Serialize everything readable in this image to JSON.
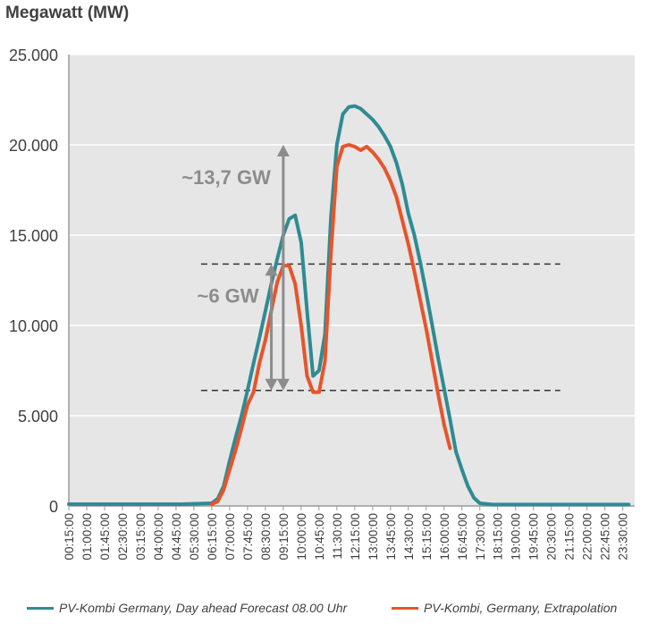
{
  "title": "Megawatt (MW)",
  "colors": {
    "forecast": "#2E8B93",
    "extrapolation": "#E8542A",
    "arrow": "#8C8C8C",
    "plot_bg": "#E6E6E6"
  },
  "chart_data": {
    "type": "line",
    "title": "Megawatt (MW)",
    "ylim": [
      0,
      25000
    ],
    "yticks": [
      0,
      5000,
      10000,
      15000,
      20000,
      25000
    ],
    "ytick_labels": [
      "0",
      "5.000",
      "10.000",
      "15.000",
      "20.000",
      "25.000"
    ],
    "xtick_labels": [
      "00:15:00",
      "01:00:00",
      "01:45:00",
      "02:30:00",
      "03:15:00",
      "04:00:00",
      "04:45:00",
      "05:30:00",
      "06:15:00",
      "07:00:00",
      "07:45:00",
      "08:30:00",
      "09:15:00",
      "10:00:00",
      "10:45:00",
      "11:30:00",
      "12:15:00",
      "13:00:00",
      "13:45:00",
      "14:30:00",
      "15:15:00",
      "16:00:00",
      "16:45:00",
      "17:30:00",
      "18:15:00",
      "19:00:00",
      "19:45:00",
      "20:30:00",
      "21:15:00",
      "22:00:00",
      "22:45:00",
      "23:30:00"
    ],
    "grid": "horizontal",
    "legend_position": "bottom",
    "series": [
      {
        "name": "PV-Kombi Germany, Day ahead Forecast 08.00 Uhr",
        "points": [
          [
            "00:15",
            100
          ],
          [
            "05:00",
            100
          ],
          [
            "06:15",
            150
          ],
          [
            "06:30",
            400
          ],
          [
            "06:45",
            1100
          ],
          [
            "07:00",
            2500
          ],
          [
            "07:15",
            3800
          ],
          [
            "07:30",
            5000
          ],
          [
            "07:45",
            6400
          ],
          [
            "08:00",
            7900
          ],
          [
            "08:15",
            9300
          ],
          [
            "08:30",
            10800
          ],
          [
            "08:45",
            12300
          ],
          [
            "09:00",
            13700
          ],
          [
            "09:15",
            15000
          ],
          [
            "09:30",
            15900
          ],
          [
            "09:45",
            16100
          ],
          [
            "10:00",
            14600
          ],
          [
            "10:15",
            10800
          ],
          [
            "10:30",
            7200
          ],
          [
            "10:45",
            7500
          ],
          [
            "11:00",
            9500
          ],
          [
            "11:15",
            16000
          ],
          [
            "11:30",
            20000
          ],
          [
            "11:45",
            21700
          ],
          [
            "12:00",
            22100
          ],
          [
            "12:15",
            22150
          ],
          [
            "12:30",
            22000
          ],
          [
            "12:45",
            21700
          ],
          [
            "13:00",
            21400
          ],
          [
            "13:15",
            21000
          ],
          [
            "13:30",
            20500
          ],
          [
            "13:45",
            19900
          ],
          [
            "14:00",
            19000
          ],
          [
            "14:15",
            17800
          ],
          [
            "14:30",
            16200
          ],
          [
            "14:45",
            15000
          ],
          [
            "15:00",
            13500
          ],
          [
            "15:15",
            11800
          ],
          [
            "15:30",
            10000
          ],
          [
            "15:45",
            8200
          ],
          [
            "16:00",
            6500
          ],
          [
            "16:15",
            4800
          ],
          [
            "16:30",
            3000
          ],
          [
            "16:45",
            2000
          ],
          [
            "17:00",
            1100
          ],
          [
            "17:15",
            450
          ],
          [
            "17:30",
            150
          ],
          [
            "18:00",
            80
          ],
          [
            "23:45",
            80
          ]
        ]
      },
      {
        "name": "PV-Kombi, Germany, Extrapolation",
        "points": [
          [
            "06:15",
            100
          ],
          [
            "06:30",
            250
          ],
          [
            "06:45",
            900
          ],
          [
            "07:00",
            2000
          ],
          [
            "07:15",
            3100
          ],
          [
            "07:30",
            4300
          ],
          [
            "07:45",
            5600
          ],
          [
            "08:00",
            6300
          ],
          [
            "08:15",
            7900
          ],
          [
            "08:30",
            9200
          ],
          [
            "08:45",
            10800
          ],
          [
            "09:00",
            12400
          ],
          [
            "09:15",
            13300
          ],
          [
            "09:30",
            13300
          ],
          [
            "09:45",
            12300
          ],
          [
            "10:00",
            10000
          ],
          [
            "10:15",
            7200
          ],
          [
            "10:30",
            6300
          ],
          [
            "10:45",
            6300
          ],
          [
            "11:00",
            8000
          ],
          [
            "11:15",
            14000
          ],
          [
            "11:30",
            18800
          ],
          [
            "11:45",
            19900
          ],
          [
            "12:00",
            20000
          ],
          [
            "12:15",
            19900
          ],
          [
            "12:30",
            19700
          ],
          [
            "12:45",
            19900
          ],
          [
            "13:00",
            19600
          ],
          [
            "13:15",
            19200
          ],
          [
            "13:30",
            18700
          ],
          [
            "13:45",
            18000
          ],
          [
            "14:00",
            17100
          ],
          [
            "14:15",
            15800
          ],
          [
            "14:30",
            14500
          ],
          [
            "14:45",
            13000
          ],
          [
            "15:00",
            11400
          ],
          [
            "15:15",
            9800
          ],
          [
            "15:30",
            8000
          ],
          [
            "15:45",
            6200
          ],
          [
            "16:00",
            4500
          ],
          [
            "16:15",
            3200
          ]
        ]
      }
    ],
    "annotations": [
      {
        "text": "~13,7 GW",
        "from": 6400,
        "to": 20000,
        "at": "09:15"
      },
      {
        "text": "~6 GW",
        "from": 6400,
        "to": 13400,
        "at": "08:45"
      }
    ],
    "reference_lines": [
      6400,
      13400
    ]
  }
}
